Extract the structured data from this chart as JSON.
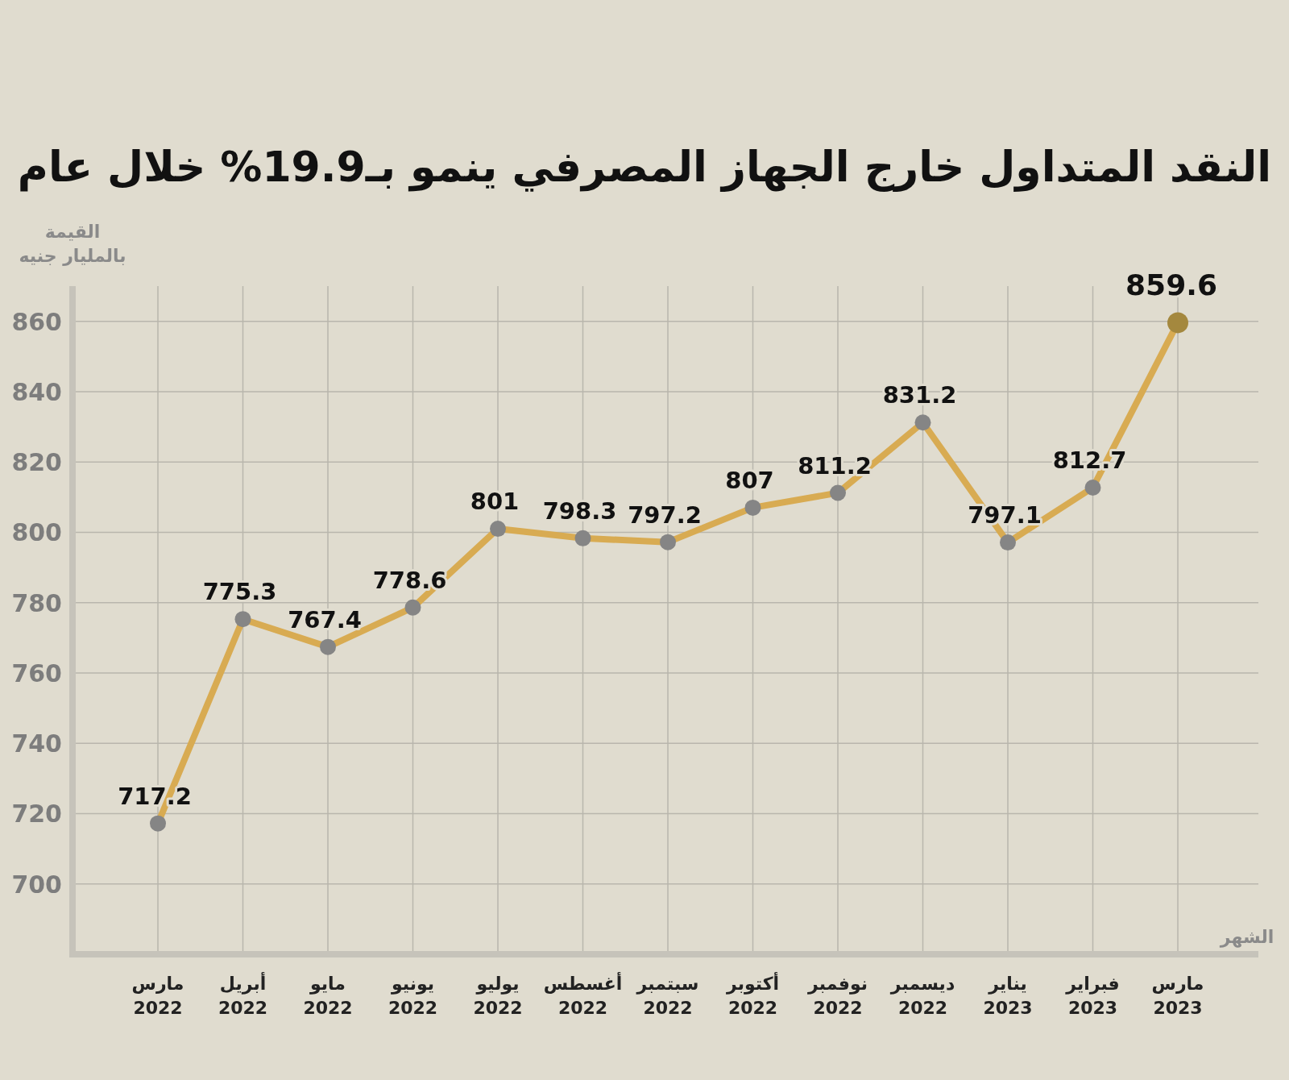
{
  "chart_data": {
    "type": "line",
    "title": "النقد المتداول خارج الجهاز المصرفي ينمو بـ19.9% خلال عام",
    "ylabel": "القيمة\nبالمليار جنيه",
    "xlabel": "الشهر",
    "categories": [
      "مارس\n2022",
      "أبريل\n2022",
      "مايو\n2022",
      "يونيو\n2022",
      "يوليو\n2022",
      "أغسطس\n2022",
      "سبتمبر\n2022",
      "أكتوبر\n2022",
      "نوفمبر\n2022",
      "ديسمبر\n2022",
      "يناير\n2023",
      "فبراير\n2023",
      "مارس\n2023"
    ],
    "series": [
      {
        "color": "#d8ab52",
        "values": [
          717.2,
          775.3,
          767.4,
          778.6,
          801,
          798.3,
          797.2,
          807,
          811.2,
          831.2,
          797.1,
          812.7,
          859.6
        ],
        "colors": [
          "#858585",
          "#858585",
          "#858585",
          "#858585",
          "#858585",
          "#858585",
          "#858585",
          "#858585",
          "#858585",
          "#858585",
          "#858585",
          "#858585",
          "#a4883e"
        ]
      }
    ],
    "ylim": [
      680,
      870
    ],
    "yticks": [
      700,
      720,
      740,
      760,
      780,
      800,
      820,
      840,
      860
    ],
    "grid": true,
    "marker": "circle",
    "data_labels": true
  }
}
